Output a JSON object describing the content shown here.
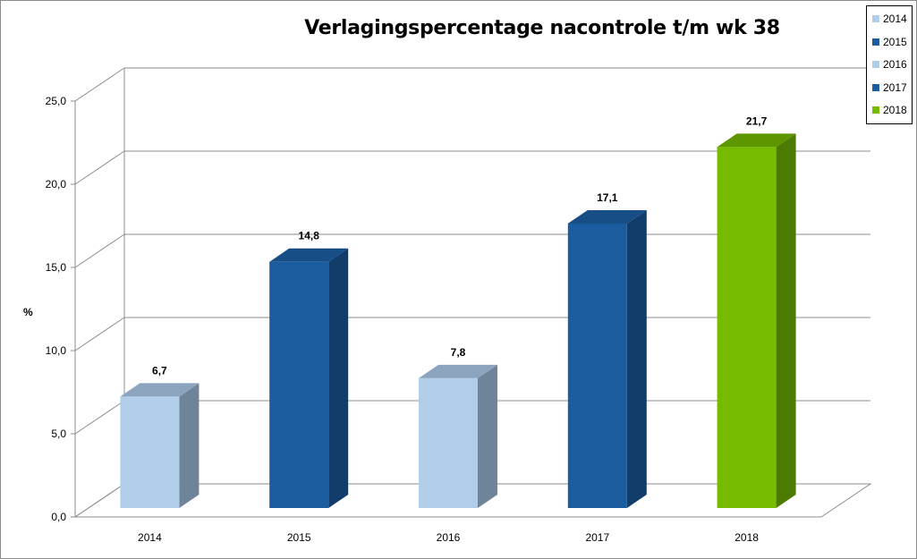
{
  "chart_data": {
    "type": "bar",
    "title": "Verlagingspercentage nacontrole t/m wk 38",
    "ylabel": "%",
    "xlabel": "",
    "categories": [
      "2014",
      "2015",
      "2016",
      "2017",
      "2018"
    ],
    "values": [
      6.7,
      14.8,
      7.8,
      17.1,
      21.7
    ],
    "value_labels": [
      "6,7",
      "14,8",
      "7,8",
      "17,1",
      "21,7"
    ],
    "ylim": [
      0,
      25
    ],
    "yticks": [
      0,
      5,
      10,
      15,
      20,
      25
    ],
    "ytick_labels": [
      "0,0",
      "5,0",
      "10,0",
      "15,0",
      "20,0",
      "25,0"
    ],
    "grid": true,
    "three_d": true,
    "legend": {
      "placement": "top-right",
      "entries": [
        "2014",
        "2015",
        "2016",
        "2017",
        "2018"
      ]
    },
    "colors": {
      "2014": {
        "front": "#b0cde9",
        "side": "#6f8499",
        "top": "#8ca4bd"
      },
      "2015": {
        "front": "#1b5c9e",
        "side": "#123d6a",
        "top": "#174e85"
      },
      "2016": {
        "front": "#b0cde9",
        "side": "#6f8499",
        "top": "#8ca4bd"
      },
      "2017": {
        "front": "#1b5c9e",
        "side": "#123d6a",
        "top": "#174e85"
      },
      "2018": {
        "front": "#77bb00",
        "side": "#4d7a00",
        "top": "#5e9600"
      }
    }
  }
}
